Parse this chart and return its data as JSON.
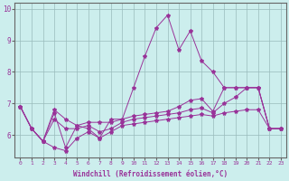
{
  "xlabel": "Windchill (Refroidissement éolien,°C)",
  "bg_color": "#cceeed",
  "line_color": "#993399",
  "grid_color": "#99bbbb",
  "axis_color": "#666666",
  "xlim": [
    -0.5,
    23.5
  ],
  "ylim": [
    5.3,
    10.2
  ],
  "yticks": [
    6,
    7,
    8,
    9,
    10
  ],
  "xticks": [
    0,
    1,
    2,
    3,
    4,
    5,
    6,
    7,
    8,
    9,
    10,
    11,
    12,
    13,
    14,
    15,
    16,
    17,
    18,
    19,
    20,
    21,
    22,
    23
  ],
  "series": [
    [
      6.9,
      6.2,
      5.8,
      6.7,
      5.6,
      6.3,
      6.2,
      5.9,
      6.5,
      6.5,
      7.5,
      8.5,
      9.4,
      9.8,
      8.7,
      9.3,
      8.35,
      8.0,
      7.5,
      7.5,
      7.5,
      7.5,
      6.2,
      6.2
    ],
    [
      6.9,
      6.2,
      5.8,
      6.8,
      6.5,
      6.3,
      6.4,
      6.4,
      6.4,
      6.5,
      6.6,
      6.65,
      6.7,
      6.75,
      6.9,
      7.1,
      7.15,
      6.75,
      7.5,
      7.5,
      7.5,
      7.5,
      6.2,
      6.2
    ],
    [
      6.9,
      6.2,
      5.8,
      6.5,
      6.2,
      6.2,
      6.3,
      6.1,
      6.2,
      6.4,
      6.5,
      6.55,
      6.6,
      6.65,
      6.7,
      6.8,
      6.85,
      6.7,
      7.0,
      7.2,
      7.5,
      7.5,
      6.2,
      6.2
    ],
    [
      6.9,
      6.2,
      5.8,
      5.6,
      5.5,
      5.9,
      6.1,
      5.9,
      6.1,
      6.3,
      6.35,
      6.4,
      6.45,
      6.5,
      6.55,
      6.6,
      6.65,
      6.6,
      6.7,
      6.75,
      6.8,
      6.8,
      6.2,
      6.2
    ]
  ]
}
